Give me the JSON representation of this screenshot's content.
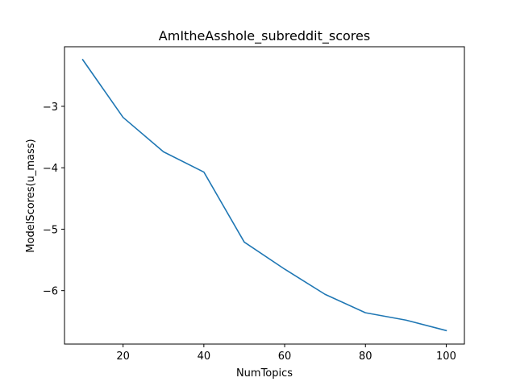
{
  "chart_data": {
    "type": "line",
    "title": "AmItheAsshole_subreddit_scores",
    "xlabel": "NumTopics",
    "ylabel": "ModelScores(u_mass)",
    "x": [
      10,
      20,
      30,
      40,
      50,
      60,
      70,
      80,
      90,
      100
    ],
    "series": [
      {
        "values": [
          -2.24,
          -3.18,
          -3.74,
          -4.07,
          -5.21,
          -5.65,
          -6.06,
          -6.36,
          -6.48,
          -6.65
        ]
      }
    ],
    "xlim": [
      5.5,
      104.5
    ],
    "ylim": [
      -6.87,
      -2.03
    ],
    "xticks": [
      20,
      40,
      60,
      80,
      100
    ],
    "xtick_labels": [
      "20",
      "40",
      "60",
      "80",
      "100"
    ],
    "yticks": [
      -3,
      -4,
      -5,
      -6
    ],
    "ytick_labels": [
      "−3",
      "−4",
      "−5",
      "−6"
    ],
    "grid": false,
    "line_color": "#1f77b4"
  }
}
